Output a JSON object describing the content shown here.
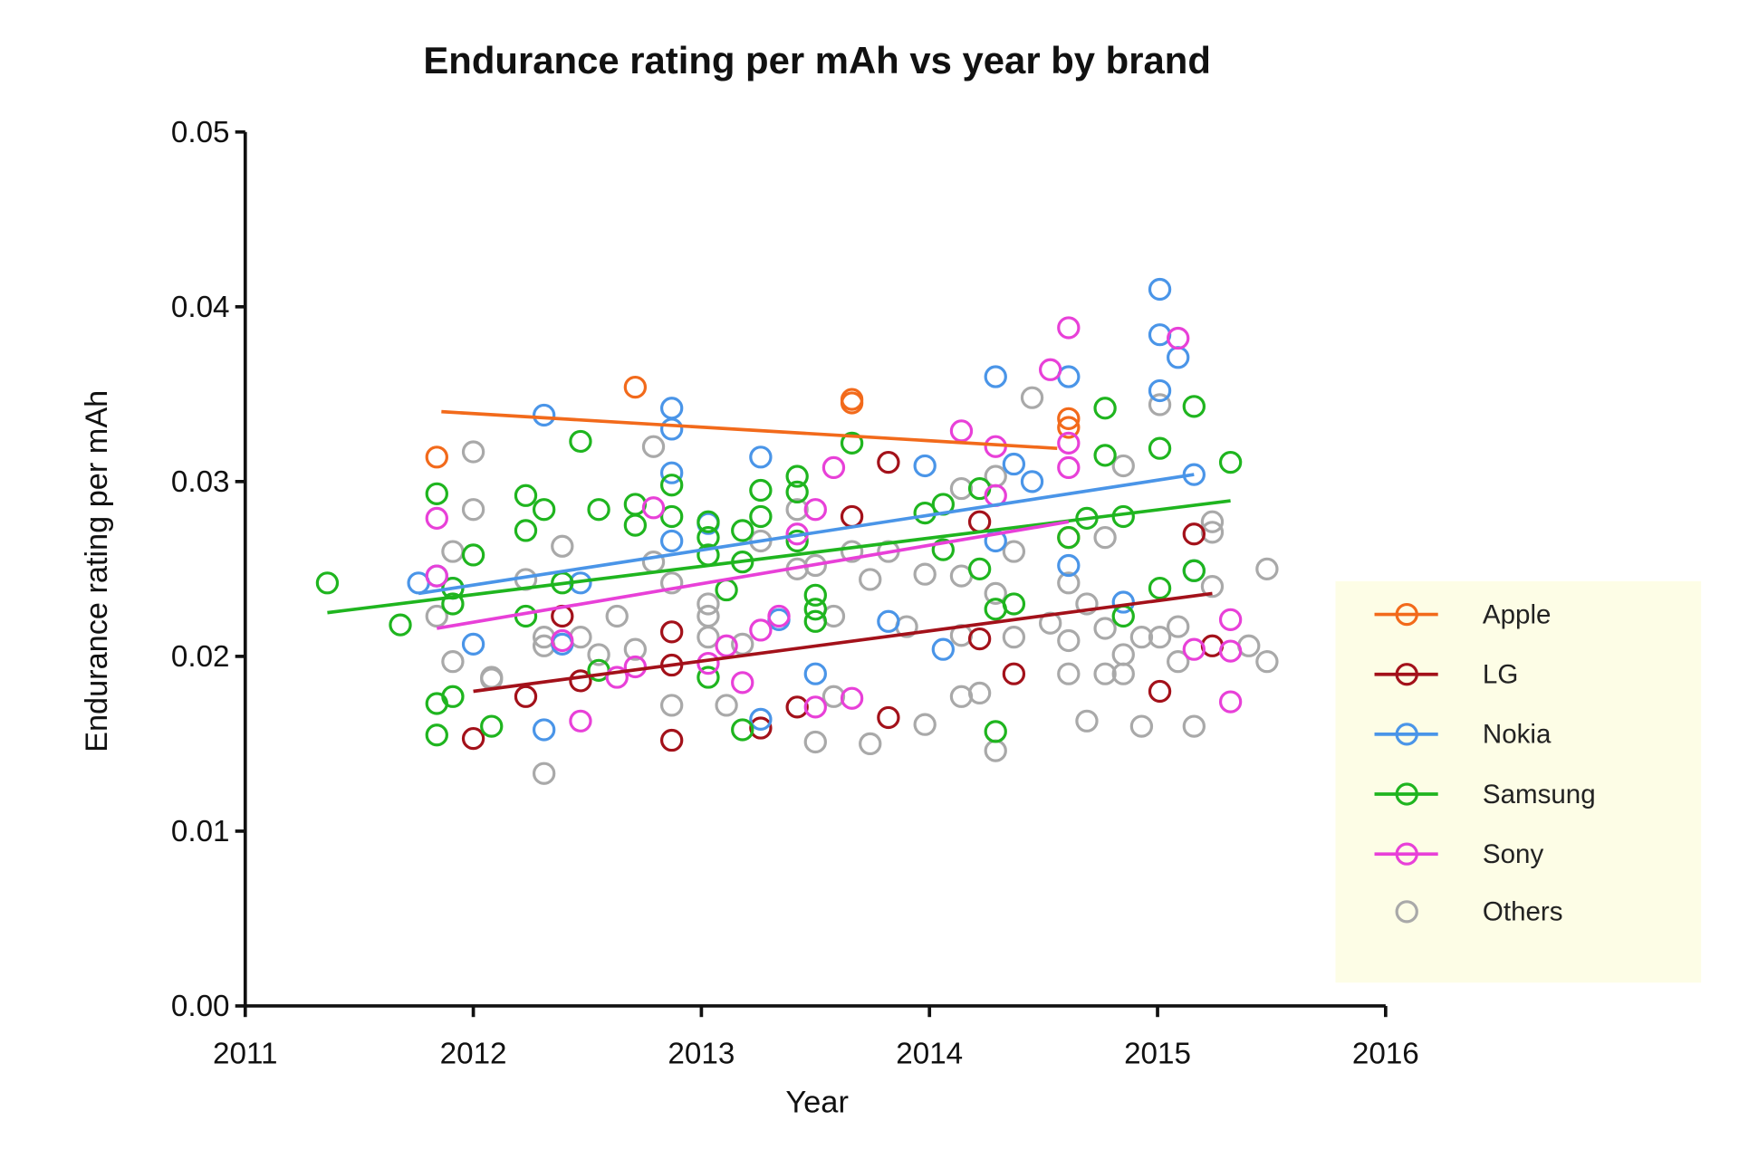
{
  "chart_data": {
    "type": "scatter",
    "title": "Endurance rating per mAh vs year by brand",
    "xlabel": "Year",
    "ylabel": "Endurance rating per mAh",
    "xlim": [
      2011,
      2016
    ],
    "ylim": [
      0,
      0.05
    ],
    "xticks": [
      "2011",
      "2012",
      "2013",
      "2014",
      "2015",
      "2016"
    ],
    "yticks": [
      "0.00",
      "0.01",
      "0.02",
      "0.03",
      "0.04",
      "0.05"
    ],
    "grid": false,
    "legend_position": "right",
    "marker": "open-circle",
    "series": [
      {
        "name": "Apple",
        "color": "#f26a1b",
        "trendline": [
          [
            2011.86,
            0.034
          ],
          [
            2014.56,
            0.0319
          ]
        ],
        "points": [
          [
            2011.84,
            0.0314
          ],
          [
            2012.71,
            0.0354
          ],
          [
            2013.66,
            0.0345
          ],
          [
            2013.66,
            0.0347
          ],
          [
            2014.61,
            0.0336
          ],
          [
            2014.61,
            0.0331
          ],
          [
            2014.61,
            0.0268
          ]
        ]
      },
      {
        "name": "LG",
        "color": "#a3111a",
        "trendline": [
          [
            2012.0,
            0.018
          ],
          [
            2015.24,
            0.0236
          ]
        ],
        "points": [
          [
            2012.0,
            0.0153
          ],
          [
            2012.23,
            0.0177
          ],
          [
            2012.39,
            0.0223
          ],
          [
            2012.47,
            0.0186
          ],
          [
            2012.87,
            0.0214
          ],
          [
            2012.87,
            0.0195
          ],
          [
            2012.87,
            0.0152
          ],
          [
            2013.26,
            0.0159
          ],
          [
            2013.42,
            0.0171
          ],
          [
            2013.66,
            0.028
          ],
          [
            2013.82,
            0.0311
          ],
          [
            2013.82,
            0.0165
          ],
          [
            2014.22,
            0.0277
          ],
          [
            2014.22,
            0.021
          ],
          [
            2014.37,
            0.019
          ],
          [
            2015.01,
            0.018
          ],
          [
            2015.16,
            0.027
          ],
          [
            2015.24,
            0.0206
          ]
        ]
      },
      {
        "name": "Nokia",
        "color": "#4a95e8",
        "trendline": [
          [
            2011.76,
            0.0236
          ],
          [
            2015.16,
            0.0304
          ]
        ],
        "points": [
          [
            2011.76,
            0.0242
          ],
          [
            2011.84,
            0.0246
          ],
          [
            2011.91,
            0.0239
          ],
          [
            2012.0,
            0.0207
          ],
          [
            2012.31,
            0.0338
          ],
          [
            2012.31,
            0.0158
          ],
          [
            2012.39,
            0.0207
          ],
          [
            2012.47,
            0.0242
          ],
          [
            2012.87,
            0.0342
          ],
          [
            2012.87,
            0.033
          ],
          [
            2012.87,
            0.0305
          ],
          [
            2012.87,
            0.0266
          ],
          [
            2013.03,
            0.0276
          ],
          [
            2013.26,
            0.0314
          ],
          [
            2013.26,
            0.0164
          ],
          [
            2013.34,
            0.0221
          ],
          [
            2013.5,
            0.019
          ],
          [
            2013.82,
            0.022
          ],
          [
            2013.98,
            0.0309
          ],
          [
            2014.06,
            0.0204
          ],
          [
            2014.29,
            0.036
          ],
          [
            2014.29,
            0.0266
          ],
          [
            2014.37,
            0.031
          ],
          [
            2014.45,
            0.03
          ],
          [
            2014.61,
            0.036
          ],
          [
            2014.61,
            0.0252
          ],
          [
            2014.85,
            0.0231
          ],
          [
            2015.01,
            0.041
          ],
          [
            2015.01,
            0.0384
          ],
          [
            2015.01,
            0.0352
          ],
          [
            2015.09,
            0.0371
          ],
          [
            2015.16,
            0.0304
          ],
          [
            2015.16,
            0.0249
          ]
        ]
      },
      {
        "name": "Samsung",
        "color": "#1fb51f",
        "trendline": [
          [
            2011.36,
            0.0225
          ],
          [
            2015.32,
            0.0289
          ]
        ],
        "points": [
          [
            2011.36,
            0.0242
          ],
          [
            2011.68,
            0.0218
          ],
          [
            2011.84,
            0.0293
          ],
          [
            2011.84,
            0.0173
          ],
          [
            2011.84,
            0.0155
          ],
          [
            2011.91,
            0.0239
          ],
          [
            2011.91,
            0.023
          ],
          [
            2011.91,
            0.0177
          ],
          [
            2012.0,
            0.0258
          ],
          [
            2012.08,
            0.016
          ],
          [
            2012.23,
            0.0292
          ],
          [
            2012.23,
            0.0272
          ],
          [
            2012.23,
            0.0223
          ],
          [
            2012.31,
            0.0284
          ],
          [
            2012.39,
            0.0242
          ],
          [
            2012.47,
            0.0323
          ],
          [
            2012.55,
            0.0284
          ],
          [
            2012.55,
            0.0192
          ],
          [
            2012.71,
            0.0287
          ],
          [
            2012.71,
            0.0275
          ],
          [
            2012.87,
            0.0298
          ],
          [
            2012.87,
            0.028
          ],
          [
            2013.03,
            0.0277
          ],
          [
            2013.03,
            0.0268
          ],
          [
            2013.03,
            0.0258
          ],
          [
            2013.03,
            0.0188
          ],
          [
            2013.11,
            0.0238
          ],
          [
            2013.18,
            0.0272
          ],
          [
            2013.18,
            0.0254
          ],
          [
            2013.18,
            0.0158
          ],
          [
            2013.26,
            0.0295
          ],
          [
            2013.26,
            0.028
          ],
          [
            2013.42,
            0.0303
          ],
          [
            2013.42,
            0.0294
          ],
          [
            2013.42,
            0.0266
          ],
          [
            2013.5,
            0.0235
          ],
          [
            2013.5,
            0.0227
          ],
          [
            2013.5,
            0.022
          ],
          [
            2013.66,
            0.0322
          ],
          [
            2013.98,
            0.0282
          ],
          [
            2014.06,
            0.0287
          ],
          [
            2014.06,
            0.0261
          ],
          [
            2014.22,
            0.0296
          ],
          [
            2014.22,
            0.025
          ],
          [
            2014.29,
            0.0227
          ],
          [
            2014.29,
            0.0157
          ],
          [
            2014.37,
            0.023
          ],
          [
            2014.61,
            0.0268
          ],
          [
            2014.69,
            0.0279
          ],
          [
            2014.77,
            0.0342
          ],
          [
            2014.77,
            0.0315
          ],
          [
            2014.85,
            0.028
          ],
          [
            2014.85,
            0.0223
          ],
          [
            2015.01,
            0.0319
          ],
          [
            2015.01,
            0.0239
          ],
          [
            2015.16,
            0.0343
          ],
          [
            2015.16,
            0.0249
          ],
          [
            2015.32,
            0.0311
          ]
        ]
      },
      {
        "name": "Sony",
        "color": "#e840d8",
        "trendline": [
          [
            2011.84,
            0.0216
          ],
          [
            2014.61,
            0.0277
          ]
        ],
        "points": [
          [
            2011.84,
            0.0279
          ],
          [
            2011.84,
            0.0246
          ],
          [
            2012.39,
            0.0209
          ],
          [
            2012.47,
            0.0163
          ],
          [
            2012.63,
            0.0188
          ],
          [
            2012.71,
            0.0194
          ],
          [
            2012.79,
            0.0285
          ],
          [
            2013.03,
            0.0196
          ],
          [
            2013.11,
            0.0206
          ],
          [
            2013.18,
            0.0185
          ],
          [
            2013.26,
            0.0215
          ],
          [
            2013.34,
            0.0223
          ],
          [
            2013.42,
            0.027
          ],
          [
            2013.5,
            0.0284
          ],
          [
            2013.5,
            0.0171
          ],
          [
            2013.58,
            0.0308
          ],
          [
            2013.66,
            0.0176
          ],
          [
            2014.14,
            0.0329
          ],
          [
            2014.29,
            0.032
          ],
          [
            2014.29,
            0.0292
          ],
          [
            2014.53,
            0.0364
          ],
          [
            2014.61,
            0.0388
          ],
          [
            2014.61,
            0.0322
          ],
          [
            2014.61,
            0.0308
          ],
          [
            2015.09,
            0.0382
          ],
          [
            2015.16,
            0.0204
          ],
          [
            2015.32,
            0.0221
          ],
          [
            2015.32,
            0.0203
          ],
          [
            2015.32,
            0.0174
          ]
        ]
      },
      {
        "name": "Others",
        "color": "#a9a9a9",
        "trendline": null,
        "points": [
          [
            2011.84,
            0.0223
          ],
          [
            2011.91,
            0.026
          ],
          [
            2011.91,
            0.0197
          ],
          [
            2012.0,
            0.0317
          ],
          [
            2012.0,
            0.0284
          ],
          [
            2012.08,
            0.0187
          ],
          [
            2012.08,
            0.0188
          ],
          [
            2012.23,
            0.0244
          ],
          [
            2012.31,
            0.0211
          ],
          [
            2012.31,
            0.0206
          ],
          [
            2012.31,
            0.0133
          ],
          [
            2012.39,
            0.0263
          ],
          [
            2012.47,
            0.0211
          ],
          [
            2012.55,
            0.0201
          ],
          [
            2012.63,
            0.0223
          ],
          [
            2012.71,
            0.0204
          ],
          [
            2012.79,
            0.032
          ],
          [
            2012.79,
            0.0254
          ],
          [
            2012.87,
            0.0242
          ],
          [
            2012.87,
            0.0172
          ],
          [
            2013.03,
            0.023
          ],
          [
            2013.03,
            0.0223
          ],
          [
            2013.03,
            0.0211
          ],
          [
            2013.11,
            0.0172
          ],
          [
            2013.18,
            0.0207
          ],
          [
            2013.26,
            0.0266
          ],
          [
            2013.42,
            0.0284
          ],
          [
            2013.42,
            0.025
          ],
          [
            2013.5,
            0.0252
          ],
          [
            2013.5,
            0.0151
          ],
          [
            2013.58,
            0.0223
          ],
          [
            2013.58,
            0.0177
          ],
          [
            2013.66,
            0.026
          ],
          [
            2013.74,
            0.0244
          ],
          [
            2013.74,
            0.015
          ],
          [
            2013.82,
            0.026
          ],
          [
            2013.9,
            0.0217
          ],
          [
            2013.98,
            0.0247
          ],
          [
            2013.98,
            0.0161
          ],
          [
            2014.14,
            0.0296
          ],
          [
            2014.14,
            0.0246
          ],
          [
            2014.14,
            0.0212
          ],
          [
            2014.14,
            0.0177
          ],
          [
            2014.22,
            0.0179
          ],
          [
            2014.29,
            0.0303
          ],
          [
            2014.29,
            0.0236
          ],
          [
            2014.29,
            0.0146
          ],
          [
            2014.37,
            0.026
          ],
          [
            2014.37,
            0.0211
          ],
          [
            2014.45,
            0.0348
          ],
          [
            2014.53,
            0.0219
          ],
          [
            2014.61,
            0.0242
          ],
          [
            2014.61,
            0.0209
          ],
          [
            2014.61,
            0.019
          ],
          [
            2014.69,
            0.023
          ],
          [
            2014.69,
            0.0163
          ],
          [
            2014.77,
            0.0268
          ],
          [
            2014.77,
            0.0216
          ],
          [
            2014.77,
            0.019
          ],
          [
            2014.85,
            0.0309
          ],
          [
            2014.85,
            0.0201
          ],
          [
            2014.85,
            0.019
          ],
          [
            2014.93,
            0.0211
          ],
          [
            2014.93,
            0.016
          ],
          [
            2015.01,
            0.0344
          ],
          [
            2015.01,
            0.0211
          ],
          [
            2015.09,
            0.0217
          ],
          [
            2015.09,
            0.0197
          ],
          [
            2015.16,
            0.016
          ],
          [
            2015.24,
            0.0277
          ],
          [
            2015.24,
            0.0271
          ],
          [
            2015.24,
            0.024
          ],
          [
            2015.4,
            0.0206
          ],
          [
            2015.48,
            0.025
          ],
          [
            2015.48,
            0.0197
          ]
        ]
      }
    ]
  }
}
